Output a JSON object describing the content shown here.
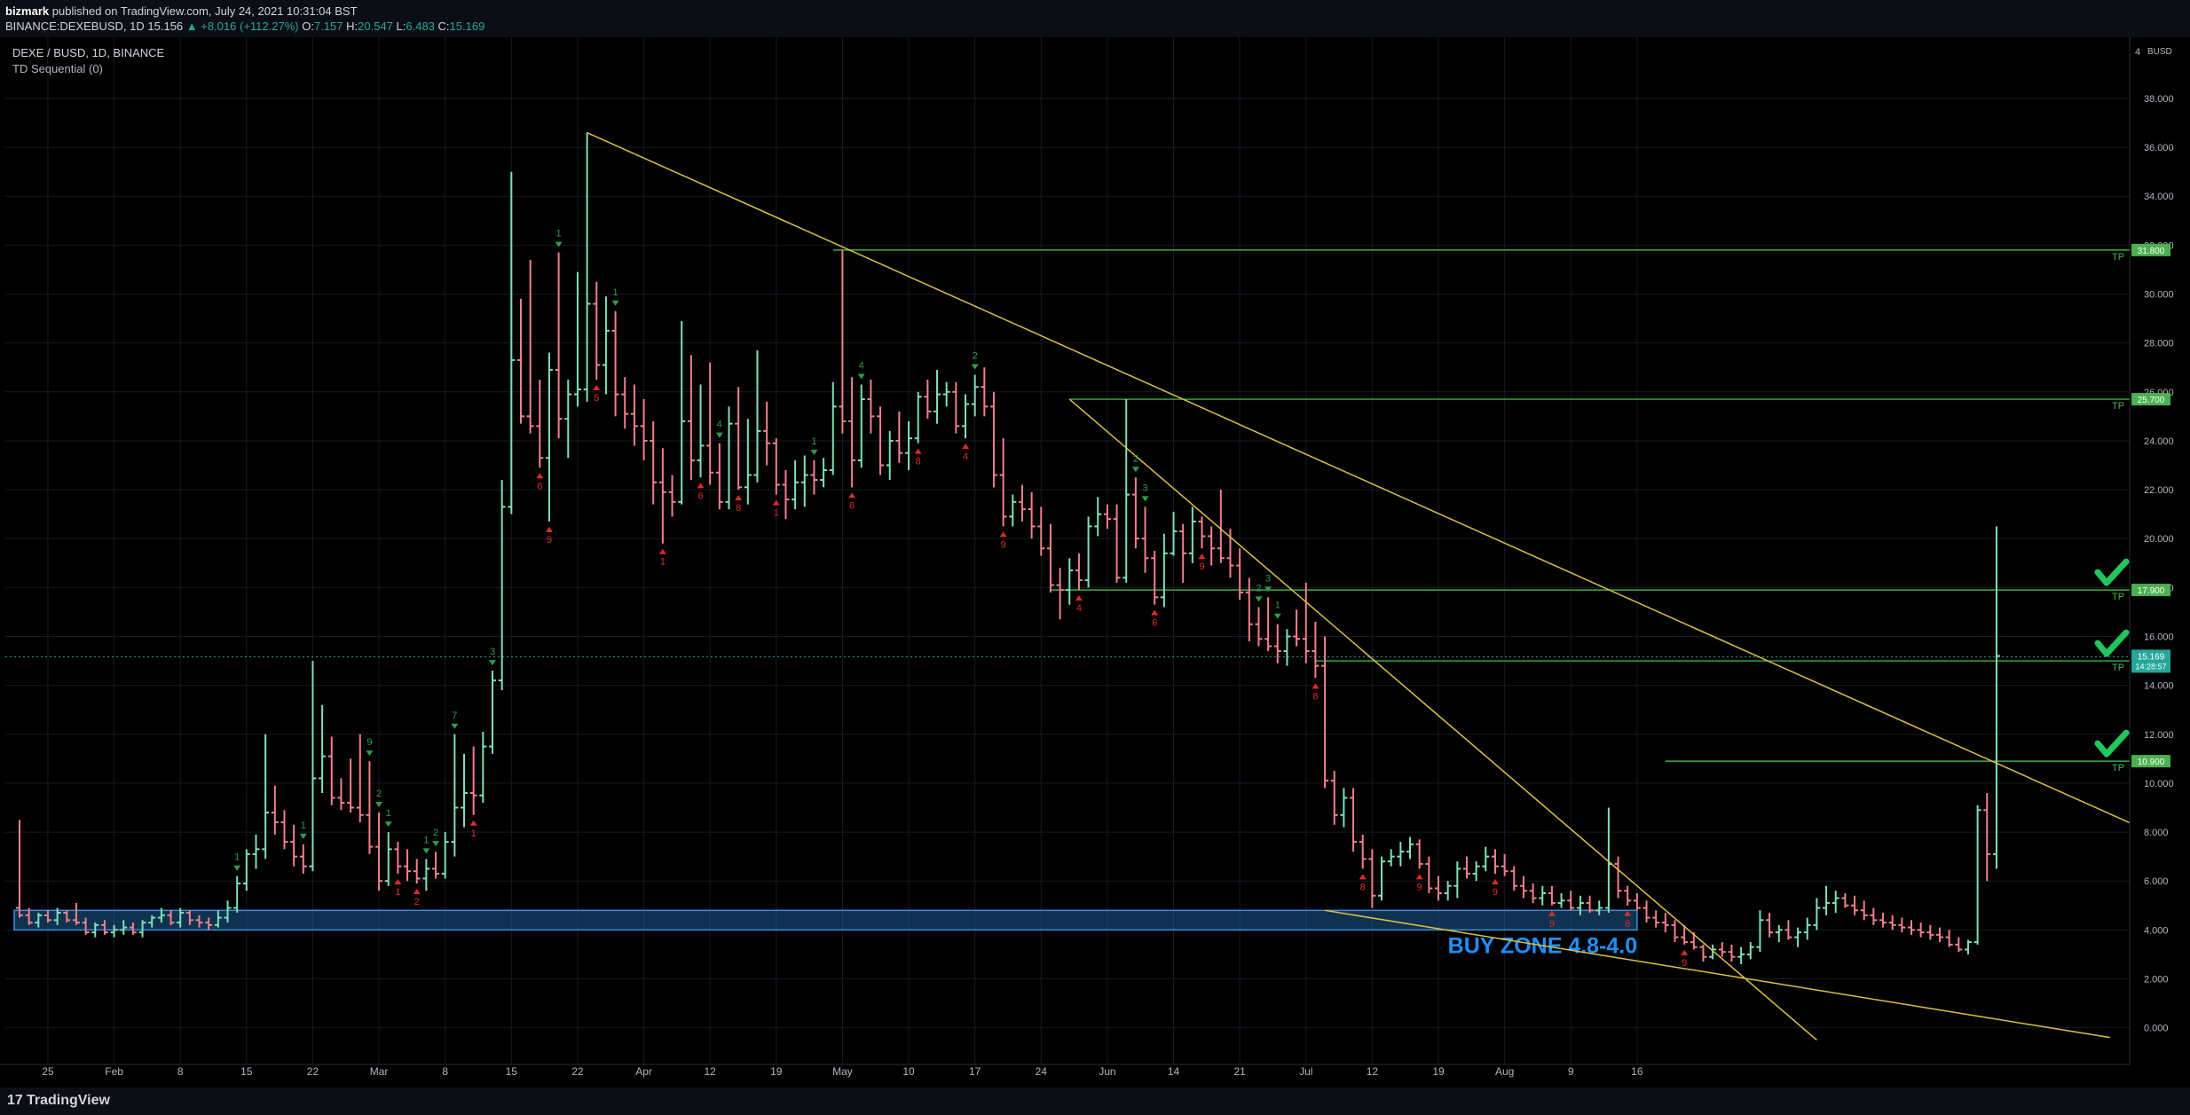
{
  "header": {
    "author": "bizmark",
    "publish_text": "published on TradingView.com, July 24, 2021 10:31:04 BST",
    "symbol": "BINANCE:DEXEBUSD, 1D",
    "last": "15.156",
    "change": "▲ +8.016 (+112.27%)",
    "open_label": "O:",
    "open": "7.157",
    "high_label": "H:",
    "high": "20.547",
    "low_label": "L:",
    "low": "6.483",
    "close_label": "C:",
    "close": "15.169"
  },
  "legend": {
    "title": "DEXE / BUSD, 1D, BINANCE",
    "indicator": "TD Sequential (0)"
  },
  "footer": {
    "brand": "TradingView",
    "brand_mark": "17"
  },
  "colors": {
    "up": "#26a69a",
    "up_bar": "#7fe0b6",
    "down_bar": "#f0808c",
    "trendline": "#e0c040",
    "tp_line": "#3cb043",
    "buy_zone": "#1f6fb2",
    "buy_zone_text": "#1e90ff",
    "check": "#22c55e",
    "tp_label_bg": "#4caf50"
  },
  "chart_data": {
    "type": "ohlc",
    "x_tick_labels": [
      "25",
      "Feb",
      "8",
      "15",
      "22",
      "Mar",
      "8",
      "15",
      "22",
      "Apr",
      "12",
      "19",
      "May",
      "10",
      "17",
      "24",
      "Jun",
      "14",
      "21",
      "Jul",
      "12",
      "19",
      "Aug",
      "9",
      "16"
    ],
    "y_tick_labels": [
      "0.000",
      "2.000",
      "4.000",
      "6.000",
      "8.000",
      "10.000",
      "12.000",
      "14.000",
      "16.000",
      "18.000",
      "20.000",
      "22.000",
      "24.000",
      "26.000",
      "28.000",
      "30.000",
      "32.000",
      "34.000",
      "36.000",
      "38.000"
    ],
    "ylim": [
      -1.5,
      40.5
    ],
    "axis_currency": "BUSD",
    "axis_top_label": "4",
    "last_price": {
      "value": 15.169,
      "label": "15.169",
      "countdown": "14:28:57"
    },
    "tp_levels": [
      {
        "value": 31.8,
        "label": "31.800",
        "tag": "TP"
      },
      {
        "value": 25.7,
        "label": "25.700",
        "tag": "TP"
      },
      {
        "value": 17.9,
        "label": "17.900",
        "tag": "TP",
        "checked": true
      },
      {
        "value": 15.0,
        "label": "15.000",
        "tag": "TP",
        "checked": true
      },
      {
        "value": 10.9,
        "label": "10.900",
        "tag": "TP",
        "checked": true
      }
    ],
    "buy_zone": {
      "low": 4.0,
      "high": 4.8,
      "label": "BUY ZONE 4.8-4.0"
    },
    "td_down": [
      {
        "i": 23,
        "n": "1"
      },
      {
        "i": 30,
        "n": "1"
      },
      {
        "i": 37,
        "n": "9"
      },
      {
        "i": 38,
        "n": "2"
      },
      {
        "i": 39,
        "n": "1"
      },
      {
        "i": 43,
        "n": "1"
      },
      {
        "i": 44,
        "n": "2"
      },
      {
        "i": 46,
        "n": "7"
      },
      {
        "i": 50,
        "n": "3"
      },
      {
        "i": 57,
        "n": "1"
      },
      {
        "i": 63,
        "n": "1"
      },
      {
        "i": 74,
        "n": "4"
      },
      {
        "i": 84,
        "n": "1"
      },
      {
        "i": 89,
        "n": "4"
      },
      {
        "i": 101,
        "n": "2"
      },
      {
        "i": 118,
        "n": "2"
      },
      {
        "i": 119,
        "n": "3"
      },
      {
        "i": 131,
        "n": "2"
      },
      {
        "i": 132,
        "n": "3"
      },
      {
        "i": 133,
        "n": "1"
      }
    ],
    "td_up": [
      {
        "i": 40,
        "n": "1"
      },
      {
        "i": 42,
        "n": "2"
      },
      {
        "i": 48,
        "n": "1"
      },
      {
        "i": 55,
        "n": "6"
      },
      {
        "i": 56,
        "n": "9"
      },
      {
        "i": 61,
        "n": "5"
      },
      {
        "i": 68,
        "n": "1"
      },
      {
        "i": 72,
        "n": "6"
      },
      {
        "i": 76,
        "n": "8"
      },
      {
        "i": 80,
        "n": "1"
      },
      {
        "i": 88,
        "n": "6"
      },
      {
        "i": 95,
        "n": "8"
      },
      {
        "i": 100,
        "n": "4"
      },
      {
        "i": 104,
        "n": "9"
      },
      {
        "i": 112,
        "n": "4"
      },
      {
        "i": 120,
        "n": "6"
      },
      {
        "i": 125,
        "n": "9"
      },
      {
        "i": 137,
        "n": "8"
      },
      {
        "i": 142,
        "n": "8"
      },
      {
        "i": 148,
        "n": "9"
      },
      {
        "i": 156,
        "n": "9"
      },
      {
        "i": 162,
        "n": "9"
      },
      {
        "i": 170,
        "n": "8"
      },
      {
        "i": 176,
        "n": "9"
      }
    ],
    "trendlines": [
      {
        "from": [
          60,
          36.6
        ],
        "to": [
          238,
          5.8
        ]
      },
      {
        "from": [
          111,
          25.7
        ],
        "to": [
          190,
          -0.5
        ]
      },
      {
        "from": [
          138,
          4.8
        ],
        "to": [
          221,
          -0.4
        ]
      }
    ],
    "candles": [
      [
        4.9,
        8.5,
        4.5,
        4.6
      ],
      [
        4.6,
        4.9,
        4.2,
        4.3
      ],
      [
        4.3,
        4.7,
        4.1,
        4.6
      ],
      [
        4.6,
        4.8,
        4.3,
        4.4
      ],
      [
        4.4,
        4.9,
        4.2,
        4.7
      ],
      [
        4.7,
        4.8,
        4.3,
        4.4
      ],
      [
        4.4,
        5.1,
        4.2,
        4.3
      ],
      [
        4.3,
        4.5,
        3.8,
        3.9
      ],
      [
        3.9,
        4.3,
        3.7,
        4.2
      ],
      [
        4.2,
        4.4,
        3.8,
        3.9
      ],
      [
        3.9,
        4.2,
        3.7,
        4.0
      ],
      [
        4.0,
        4.4,
        3.8,
        4.1
      ],
      [
        4.1,
        4.3,
        3.8,
        3.9
      ],
      [
        3.9,
        4.4,
        3.7,
        4.3
      ],
      [
        4.3,
        4.6,
        4.1,
        4.5
      ],
      [
        4.5,
        4.9,
        4.3,
        4.6
      ],
      [
        4.6,
        4.8,
        4.2,
        4.3
      ],
      [
        4.3,
        4.9,
        4.1,
        4.7
      ],
      [
        4.7,
        4.8,
        4.2,
        4.4
      ],
      [
        4.4,
        4.6,
        4.1,
        4.3
      ],
      [
        4.3,
        4.5,
        4.0,
        4.2
      ],
      [
        4.2,
        4.8,
        4.1,
        4.5
      ],
      [
        4.5,
        5.2,
        4.3,
        4.9
      ],
      [
        4.9,
        6.2,
        4.7,
        5.9
      ],
      [
        5.9,
        7.3,
        5.6,
        7.1
      ],
      [
        7.1,
        7.9,
        6.5,
        7.3
      ],
      [
        7.3,
        12.0,
        6.9,
        8.8
      ],
      [
        8.8,
        9.9,
        7.9,
        8.4
      ],
      [
        8.4,
        8.9,
        7.3,
        7.6
      ],
      [
        7.6,
        8.3,
        6.6,
        7.0
      ],
      [
        7.0,
        7.5,
        6.3,
        6.6
      ],
      [
        6.6,
        15.0,
        6.4,
        10.2
      ],
      [
        10.2,
        13.2,
        9.6,
        11.1
      ],
      [
        11.1,
        11.9,
        9.1,
        9.4
      ],
      [
        9.4,
        10.2,
        8.9,
        9.2
      ],
      [
        9.2,
        11.0,
        8.8,
        9.0
      ],
      [
        9.0,
        12.0,
        8.4,
        8.7
      ],
      [
        8.7,
        10.9,
        7.1,
        7.4
      ],
      [
        7.4,
        8.8,
        5.6,
        6.0
      ],
      [
        6.0,
        8.0,
        5.8,
        7.3
      ],
      [
        7.3,
        7.6,
        6.3,
        6.6
      ],
      [
        6.6,
        7.3,
        6.0,
        6.4
      ],
      [
        6.4,
        6.9,
        5.9,
        6.1
      ],
      [
        6.1,
        6.9,
        5.6,
        6.5
      ],
      [
        6.5,
        7.2,
        6.1,
        6.3
      ],
      [
        6.3,
        8.0,
        6.1,
        7.6
      ],
      [
        7.6,
        12.0,
        7.0,
        9.0
      ],
      [
        9.0,
        11.2,
        8.2,
        9.6
      ],
      [
        9.6,
        11.5,
        8.7,
        9.5
      ],
      [
        9.5,
        12.1,
        9.2,
        11.5
      ],
      [
        11.5,
        14.6,
        11.2,
        14.2
      ],
      [
        14.2,
        22.4,
        13.8,
        21.3
      ],
      [
        21.3,
        35.0,
        21.0,
        27.3
      ],
      [
        27.3,
        29.8,
        24.7,
        25.0
      ],
      [
        25.0,
        31.4,
        24.3,
        24.6
      ],
      [
        24.6,
        26.5,
        22.9,
        23.3
      ],
      [
        23.3,
        27.6,
        20.7,
        26.9
      ],
      [
        26.9,
        31.7,
        24.1,
        24.9
      ],
      [
        24.9,
        26.5,
        23.3,
        25.9
      ],
      [
        25.9,
        30.9,
        25.4,
        26.1
      ],
      [
        26.1,
        36.6,
        25.6,
        29.6
      ],
      [
        29.6,
        30.5,
        26.5,
        27.1
      ],
      [
        27.1,
        29.9,
        25.9,
        28.5
      ],
      [
        28.5,
        29.3,
        25.0,
        25.9
      ],
      [
        25.9,
        26.6,
        24.5,
        25.1
      ],
      [
        25.1,
        26.3,
        23.8,
        24.6
      ],
      [
        24.6,
        25.7,
        23.2,
        24.0
      ],
      [
        24.0,
        24.8,
        21.4,
        22.3
      ],
      [
        22.3,
        23.7,
        19.8,
        21.9
      ],
      [
        21.9,
        22.6,
        20.9,
        21.5
      ],
      [
        21.5,
        28.9,
        21.4,
        24.8
      ],
      [
        24.8,
        27.5,
        22.4,
        23.2
      ],
      [
        23.2,
        26.3,
        22.5,
        23.8
      ],
      [
        23.8,
        27.2,
        22.2,
        22.7
      ],
      [
        22.7,
        23.9,
        21.2,
        21.5
      ],
      [
        21.5,
        25.4,
        21.2,
        24.7
      ],
      [
        24.7,
        26.2,
        22.0,
        22.1
      ],
      [
        22.1,
        24.9,
        21.4,
        22.6
      ],
      [
        22.6,
        27.7,
        22.3,
        24.4
      ],
      [
        24.4,
        25.6,
        23.0,
        23.9
      ],
      [
        23.9,
        24.1,
        21.8,
        22.2
      ],
      [
        22.2,
        22.8,
        20.8,
        21.6
      ],
      [
        21.6,
        23.2,
        21.2,
        22.3
      ],
      [
        22.3,
        23.4,
        21.3,
        22.6
      ],
      [
        22.6,
        23.2,
        21.8,
        22.4
      ],
      [
        22.4,
        23.3,
        22.1,
        22.8
      ],
      [
        22.8,
        26.4,
        22.6,
        25.4
      ],
      [
        25.4,
        31.8,
        24.3,
        24.8
      ],
      [
        24.8,
        26.6,
        22.1,
        23.2
      ],
      [
        23.2,
        26.3,
        22.9,
        25.7
      ],
      [
        25.7,
        26.5,
        24.3,
        25.0
      ],
      [
        25.0,
        25.4,
        22.6,
        23.0
      ],
      [
        23.0,
        24.4,
        22.4,
        24.0
      ],
      [
        24.0,
        25.2,
        23.1,
        23.5
      ],
      [
        23.5,
        24.8,
        22.8,
        24.1
      ],
      [
        24.1,
        26.0,
        23.9,
        25.8
      ],
      [
        25.8,
        26.5,
        24.9,
        25.2
      ],
      [
        25.2,
        26.9,
        24.7,
        25.9
      ],
      [
        25.9,
        26.4,
        25.4,
        26.0
      ],
      [
        26.0,
        26.4,
        24.3,
        24.6
      ],
      [
        24.6,
        25.9,
        24.1,
        25.5
      ],
      [
        25.5,
        26.7,
        25.0,
        26.2
      ],
      [
        26.2,
        27.0,
        25.0,
        25.4
      ],
      [
        25.4,
        26.0,
        22.1,
        22.6
      ],
      [
        22.6,
        24.1,
        20.5,
        20.9
      ],
      [
        20.9,
        21.8,
        20.5,
        21.5
      ],
      [
        21.5,
        22.2,
        20.7,
        21.2
      ],
      [
        21.2,
        21.9,
        20.0,
        20.5
      ],
      [
        20.5,
        21.3,
        19.3,
        19.6
      ],
      [
        19.6,
        20.6,
        17.8,
        18.1
      ],
      [
        18.1,
        18.8,
        16.7,
        17.9
      ],
      [
        17.9,
        19.2,
        17.3,
        18.7
      ],
      [
        18.7,
        19.4,
        17.9,
        18.3
      ],
      [
        18.3,
        20.9,
        18.0,
        20.5
      ],
      [
        20.5,
        21.7,
        20.1,
        21.0
      ],
      [
        21.0,
        21.4,
        20.4,
        20.8
      ],
      [
        20.8,
        21.4,
        18.2,
        18.4
      ],
      [
        18.4,
        25.7,
        18.2,
        21.8
      ],
      [
        21.8,
        22.5,
        19.6,
        20.0
      ],
      [
        20.0,
        21.3,
        18.6,
        19.2
      ],
      [
        19.2,
        19.5,
        17.3,
        17.6
      ],
      [
        17.6,
        20.2,
        17.2,
        19.4
      ],
      [
        19.4,
        21.1,
        19.3,
        20.3
      ],
      [
        20.3,
        20.6,
        18.2,
        19.4
      ],
      [
        19.4,
        21.3,
        19.0,
        20.7
      ],
      [
        20.7,
        20.9,
        19.6,
        20.1
      ],
      [
        20.1,
        20.5,
        18.9,
        19.6
      ],
      [
        19.6,
        22.0,
        19.0,
        19.2
      ],
      [
        19.2,
        20.4,
        18.4,
        18.9
      ],
      [
        18.9,
        19.6,
        17.5,
        17.8
      ],
      [
        17.8,
        18.4,
        15.8,
        16.5
      ],
      [
        16.5,
        17.2,
        15.6,
        15.9
      ],
      [
        15.9,
        17.6,
        15.4,
        15.6
      ],
      [
        15.6,
        16.5,
        14.9,
        15.4
      ],
      [
        15.4,
        16.3,
        14.8,
        16.0
      ],
      [
        16.0,
        17.1,
        15.6,
        15.9
      ],
      [
        15.9,
        18.2,
        14.9,
        15.4
      ],
      [
        15.4,
        16.6,
        14.3,
        14.8
      ],
      [
        14.8,
        16.0,
        9.8,
        10.1
      ],
      [
        10.1,
        10.5,
        8.3,
        8.7
      ],
      [
        8.7,
        9.8,
        8.2,
        9.4
      ],
      [
        9.4,
        9.8,
        7.2,
        7.6
      ],
      [
        7.6,
        7.9,
        6.5,
        6.9
      ],
      [
        6.9,
        7.3,
        4.9,
        5.4
      ],
      [
        5.4,
        7.0,
        5.2,
        6.8
      ],
      [
        6.8,
        7.3,
        6.6,
        7.0
      ],
      [
        7.0,
        7.6,
        6.6,
        7.2
      ],
      [
        7.2,
        7.8,
        6.9,
        7.5
      ],
      [
        7.5,
        7.7,
        6.5,
        6.7
      ],
      [
        6.7,
        7.0,
        5.5,
        5.7
      ],
      [
        5.7,
        6.2,
        5.2,
        5.5
      ],
      [
        5.5,
        6.0,
        5.2,
        5.8
      ],
      [
        5.8,
        6.8,
        5.3,
        6.5
      ],
      [
        6.5,
        7.0,
        6.1,
        6.3
      ],
      [
        6.3,
        6.8,
        6.0,
        6.6
      ],
      [
        6.6,
        7.4,
        6.4,
        7.0
      ],
      [
        7.0,
        7.3,
        6.3,
        6.6
      ],
      [
        6.6,
        7.1,
        6.2,
        6.4
      ],
      [
        6.4,
        6.6,
        5.6,
        5.8
      ],
      [
        5.8,
        6.2,
        5.3,
        5.6
      ],
      [
        5.6,
        5.9,
        5.1,
        5.3
      ],
      [
        5.3,
        5.8,
        5.0,
        5.5
      ],
      [
        5.5,
        5.8,
        5.0,
        5.1
      ],
      [
        5.1,
        5.5,
        4.9,
        5.2
      ],
      [
        5.2,
        5.6,
        4.8,
        4.9
      ],
      [
        4.9,
        5.4,
        4.6,
        5.1
      ],
      [
        5.1,
        5.4,
        4.7,
        4.8
      ],
      [
        4.8,
        5.2,
        4.6,
        4.9
      ],
      [
        4.9,
        9.0,
        4.7,
        6.7
      ],
      [
        6.7,
        7.0,
        5.3,
        5.6
      ],
      [
        5.6,
        5.8,
        5.0,
        5.2
      ],
      [
        5.2,
        5.5,
        4.8,
        4.9
      ],
      [
        4.9,
        5.2,
        4.3,
        4.5
      ],
      [
        4.5,
        4.8,
        4.1,
        4.3
      ],
      [
        4.3,
        4.7,
        3.9,
        4.2
      ],
      [
        4.2,
        4.4,
        3.5,
        3.7
      ],
      [
        3.7,
        4.2,
        3.4,
        3.5
      ],
      [
        3.5,
        3.9,
        3.2,
        3.3
      ],
      [
        3.3,
        3.4,
        2.7,
        2.9
      ],
      [
        2.9,
        3.4,
        2.8,
        3.2
      ],
      [
        3.2,
        3.5,
        2.9,
        3.1
      ],
      [
        3.1,
        3.4,
        2.7,
        2.9
      ],
      [
        2.9,
        3.3,
        2.6,
        3.0
      ],
      [
        3.0,
        3.5,
        2.8,
        3.3
      ],
      [
        3.3,
        4.8,
        3.1,
        4.4
      ],
      [
        4.4,
        4.7,
        3.7,
        3.9
      ],
      [
        3.9,
        4.2,
        3.5,
        4.0
      ],
      [
        4.0,
        4.4,
        3.6,
        3.7
      ],
      [
        3.7,
        4.1,
        3.3,
        3.9
      ],
      [
        3.9,
        4.5,
        3.6,
        4.2
      ],
      [
        4.2,
        5.3,
        4.0,
        4.9
      ],
      [
        4.9,
        5.8,
        4.6,
        5.1
      ],
      [
        5.1,
        5.6,
        4.7,
        5.3
      ],
      [
        5.3,
        5.5,
        4.9,
        5.0
      ],
      [
        5.0,
        5.4,
        4.6,
        4.8
      ],
      [
        4.8,
        5.2,
        4.4,
        4.6
      ],
      [
        4.6,
        4.9,
        4.2,
        4.4
      ],
      [
        4.4,
        4.7,
        4.1,
        4.3
      ],
      [
        4.3,
        4.6,
        4.0,
        4.2
      ],
      [
        4.2,
        4.5,
        3.9,
        4.1
      ],
      [
        4.1,
        4.4,
        3.8,
        4.0
      ],
      [
        4.0,
        4.3,
        3.7,
        3.9
      ],
      [
        3.9,
        4.2,
        3.6,
        3.8
      ],
      [
        3.8,
        4.1,
        3.5,
        3.7
      ],
      [
        3.7,
        4.0,
        3.3,
        3.4
      ],
      [
        3.4,
        3.7,
        3.1,
        3.2
      ],
      [
        3.2,
        3.6,
        3.0,
        3.5
      ],
      [
        3.5,
        9.1,
        3.4,
        8.9
      ],
      [
        8.9,
        9.6,
        6.0,
        7.1
      ],
      [
        7.1,
        20.5,
        6.5,
        15.2
      ]
    ]
  }
}
